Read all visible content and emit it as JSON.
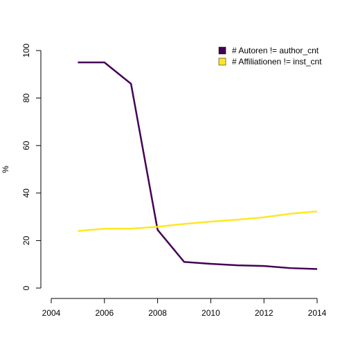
{
  "chart_data": {
    "type": "line",
    "title": "",
    "xlabel": "",
    "ylabel": "%",
    "xlim": [
      2004,
      2014
    ],
    "ylim": [
      0,
      100
    ],
    "x_ticks": [
      "2004",
      "2006",
      "2008",
      "2010",
      "2012",
      "2014"
    ],
    "y_ticks": [
      "0",
      "20",
      "40",
      "60",
      "80",
      "100"
    ],
    "grid": false,
    "legend_position": "top-right",
    "x": [
      2005,
      2006,
      2007,
      2008,
      2009,
      2010,
      2011,
      2012,
      2013,
      2014
    ],
    "series": [
      {
        "name": "# Autoren != author_cnt",
        "color": "#440154",
        "values": [
          95,
          95,
          86,
          24.5,
          11,
          10.2,
          9.6,
          9.3,
          8.4,
          8
        ]
      },
      {
        "name": "# Affiliationen != inst_cnt",
        "color": "#FDE725",
        "values": [
          24,
          25,
          25,
          25.8,
          27,
          28,
          28.8,
          29.8,
          31.3,
          32.3
        ]
      }
    ]
  }
}
